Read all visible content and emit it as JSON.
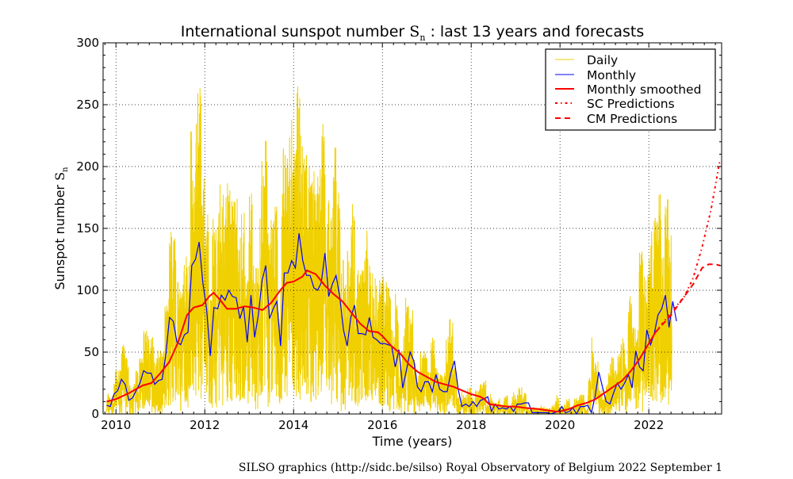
{
  "chart_data": {
    "type": "line",
    "title_prefix": "International sunspot number ",
    "title_symbol": "S",
    "title_subscript": "n",
    "title_suffix": " : last 13 years and forecasts",
    "xlabel": "Time (years)",
    "ylabel_prefix": "Sunspot number ",
    "ylabel_symbol": "S",
    "ylabel_subscript": "n",
    "xlim": [
      2009.71,
      2023.64
    ],
    "ylim": [
      0,
      300
    ],
    "xticks": [
      2010,
      2012,
      2014,
      2016,
      2018,
      2020,
      2022
    ],
    "xtick_labels": [
      "2010",
      "2012",
      "2014",
      "2016",
      "2018",
      "2020",
      "2022"
    ],
    "yticks": [
      0,
      50,
      100,
      150,
      200,
      250,
      300
    ],
    "ytick_labels": [
      "0",
      "50",
      "100",
      "150",
      "200",
      "250",
      "300"
    ],
    "grid": true,
    "legend_position": "top-right",
    "legend": [
      "Daily",
      "Monthly",
      "Monthly smoothed",
      "SC Predictions",
      "CM Predictions"
    ],
    "colors": {
      "daily": "#f0d000",
      "monthly": "#0000ff",
      "smoothed": "#ff0000",
      "sc": "#ff0000",
      "cm": "#ff0000"
    },
    "monthly_start": 2009.79,
    "monthly": [
      7,
      6,
      16,
      19,
      28,
      24,
      11,
      13,
      19,
      25,
      35,
      33,
      33,
      24,
      27,
      28,
      48,
      78,
      75,
      58,
      56,
      64,
      66,
      120,
      125,
      139,
      106,
      85,
      47,
      86,
      85,
      96,
      92,
      100,
      95,
      94,
      77,
      87,
      58,
      96,
      62,
      80,
      108,
      120,
      77,
      85,
      91,
      55,
      114,
      114,
      124,
      118,
      146,
      124,
      112,
      112,
      102,
      100,
      106,
      130,
      95,
      105,
      112,
      95,
      68,
      55,
      78,
      88,
      65,
      65,
      64,
      78,
      62,
      60,
      57,
      57,
      56,
      55,
      38,
      52,
      21,
      35,
      50,
      43,
      22,
      18,
      26,
      26,
      18,
      32,
      20,
      18,
      18,
      33,
      43,
      20,
      6,
      8,
      6,
      10,
      6,
      11,
      12,
      14,
      2,
      8,
      4,
      5,
      4,
      6,
      2,
      8,
      8,
      9,
      9,
      1,
      1,
      1,
      1,
      1,
      0,
      1,
      2,
      6,
      1,
      2,
      5,
      0,
      6,
      6,
      7,
      1,
      14,
      34,
      22,
      10,
      8,
      17,
      25,
      20,
      25,
      32,
      21,
      51,
      38,
      35,
      68,
      56,
      65,
      80,
      85,
      96,
      70,
      91,
      75
    ],
    "smoothed": [
      [
        2009.79,
        10
      ],
      [
        2010.0,
        12
      ],
      [
        2010.3,
        17
      ],
      [
        2010.6,
        23
      ],
      [
        2010.8,
        25
      ],
      [
        2011.0,
        33
      ],
      [
        2011.2,
        42
      ],
      [
        2011.4,
        58
      ],
      [
        2011.6,
        80
      ],
      [
        2011.75,
        86
      ],
      [
        2011.95,
        88
      ],
      [
        2012.1,
        95
      ],
      [
        2012.2,
        98
      ],
      [
        2012.35,
        92
      ],
      [
        2012.5,
        85
      ],
      [
        2012.7,
        85
      ],
      [
        2012.9,
        87
      ],
      [
        2013.1,
        86
      ],
      [
        2013.3,
        84
      ],
      [
        2013.5,
        90
      ],
      [
        2013.7,
        100
      ],
      [
        2013.85,
        106
      ],
      [
        2014.0,
        107
      ],
      [
        2014.2,
        111
      ],
      [
        2014.3,
        116
      ],
      [
        2014.5,
        113
      ],
      [
        2014.7,
        104
      ],
      [
        2014.9,
        97
      ],
      [
        2015.1,
        91
      ],
      [
        2015.3,
        82
      ],
      [
        2015.5,
        73
      ],
      [
        2015.7,
        67
      ],
      [
        2015.9,
        66
      ],
      [
        2016.0,
        63
      ],
      [
        2016.2,
        55
      ],
      [
        2016.4,
        49
      ],
      [
        2016.6,
        40
      ],
      [
        2016.8,
        34
      ],
      [
        2017.0,
        30
      ],
      [
        2017.2,
        26
      ],
      [
        2017.4,
        24
      ],
      [
        2017.6,
        22
      ],
      [
        2017.8,
        19
      ],
      [
        2018.0,
        16
      ],
      [
        2018.2,
        14
      ],
      [
        2018.3,
        12
      ],
      [
        2018.4,
        8
      ],
      [
        2018.6,
        7
      ],
      [
        2018.8,
        6
      ],
      [
        2019.0,
        6
      ],
      [
        2019.2,
        5
      ],
      [
        2019.5,
        4
      ],
      [
        2019.7,
        3
      ],
      [
        2019.9,
        2
      ],
      [
        2020.0,
        2
      ],
      [
        2020.2,
        4
      ],
      [
        2020.4,
        7
      ],
      [
        2020.6,
        9
      ],
      [
        2020.8,
        12
      ],
      [
        2021.0,
        17
      ],
      [
        2021.2,
        22
      ],
      [
        2021.4,
        27
      ],
      [
        2021.6,
        35
      ],
      [
        2021.8,
        45
      ],
      [
        2022.0,
        57
      ],
      [
        2022.15,
        66
      ]
    ],
    "sc_predictions": [
      [
        2022.15,
        66
      ],
      [
        2022.5,
        82
      ],
      [
        2022.8,
        95
      ],
      [
        2023.0,
        110
      ],
      [
        2023.2,
        135
      ],
      [
        2023.4,
        165
      ],
      [
        2023.6,
        205
      ]
    ],
    "cm_predictions": [
      [
        2022.15,
        66
      ],
      [
        2022.5,
        80
      ],
      [
        2022.8,
        95
      ],
      [
        2023.0,
        105
      ],
      [
        2023.2,
        118
      ],
      [
        2023.35,
        121
      ],
      [
        2023.5,
        121
      ],
      [
        2023.6,
        120
      ]
    ],
    "daily_spread_fraction": 0.7
  },
  "footer": "SILSO graphics (http://sidc.be/silso)  Royal Observatory of Belgium  2022 September 1"
}
